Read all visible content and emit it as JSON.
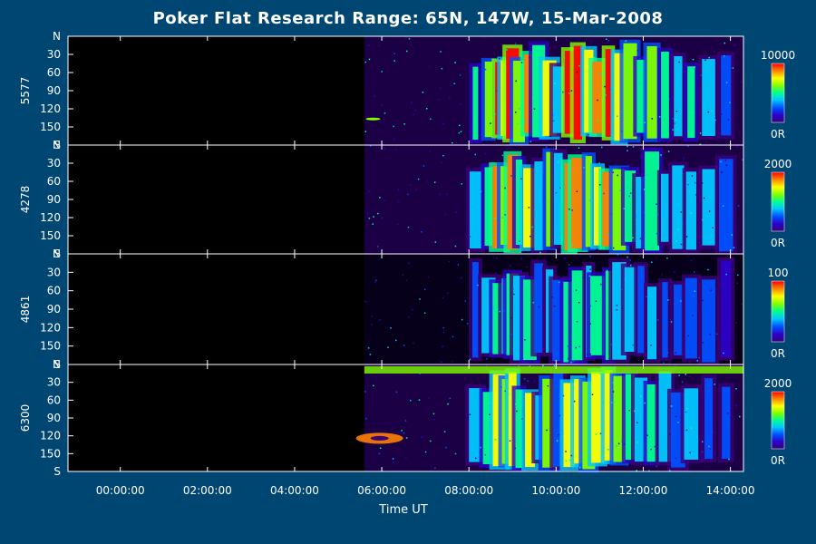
{
  "chart_data": {
    "type": "heatmap",
    "title": "Poker Flat Research Range: 65N, 147W, 15-Mar-2008",
    "xlabel": "Time UT",
    "x_ticks": [
      "00:00:00",
      "02:00:00",
      "04:00:00",
      "06:00:00",
      "08:00:00",
      "10:00:00",
      "12:00:00",
      "14:00:00"
    ],
    "x_tick_hours": [
      0,
      2,
      4,
      6,
      8,
      10,
      12,
      14
    ],
    "xlim_hours": [
      -1.2,
      14.3
    ],
    "y_ticks": [
      "N",
      "30",
      "60",
      "90",
      "120",
      "150",
      "S"
    ],
    "y_tick_values": [
      0,
      30,
      60,
      90,
      120,
      150,
      180
    ],
    "ylim": [
      0,
      180
    ],
    "data_start_hour": 5.6,
    "panels": [
      {
        "name": "5577",
        "cbar_max": "10000",
        "cbar_min": "0R"
      },
      {
        "name": "4278",
        "cbar_max": "2000",
        "cbar_min": "0R"
      },
      {
        "name": "4861",
        "cbar_max": "100",
        "cbar_min": "0R"
      },
      {
        "name": "6300",
        "cbar_max": "2000",
        "cbar_min": "0R"
      }
    ],
    "colorscale": [
      "#3b007a",
      "#2a00c8",
      "#0050ff",
      "#00c8ff",
      "#00ff90",
      "#80ff00",
      "#ffff00",
      "#ff8000",
      "#ff0000"
    ]
  }
}
